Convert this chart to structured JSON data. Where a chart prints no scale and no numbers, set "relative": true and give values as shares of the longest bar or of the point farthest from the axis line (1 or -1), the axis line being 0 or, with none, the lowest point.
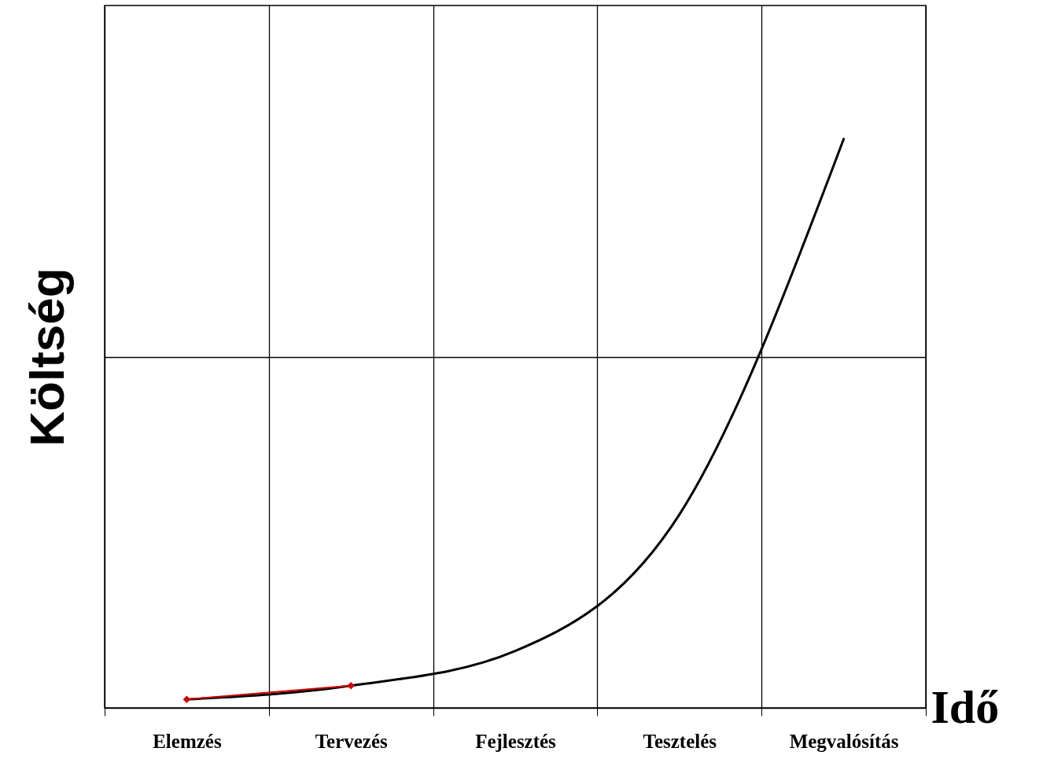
{
  "chart_data": {
    "type": "line",
    "xlabel": "Idő",
    "ylabel": "Költség",
    "categories": [
      "Elemzés",
      "Tervezés",
      "Fejlesztés",
      "Tesztelés",
      "Megvalósítás"
    ],
    "relative": true,
    "grid": true,
    "series": [
      {
        "color": "#000000",
        "marker": "none",
        "values": [
          0.015,
          0.039,
          0.1,
          0.34,
          1
        ]
      },
      {
        "color": "#cc0000",
        "marker": "diamond",
        "values": [
          0.015,
          0.039,
          null,
          null,
          null
        ]
      }
    ]
  }
}
